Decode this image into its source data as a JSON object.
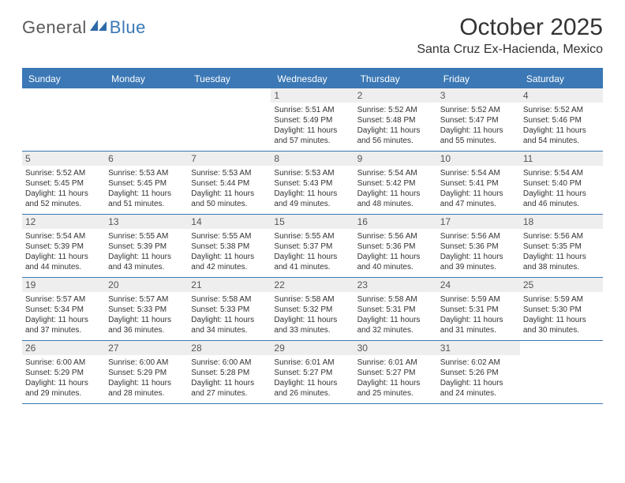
{
  "brand": {
    "part1": "General",
    "part2": "Blue"
  },
  "title": "October 2025",
  "location": "Santa Cruz Ex-Hacienda, Mexico",
  "colors": {
    "accent": "#3b78b5",
    "header_text": "#ffffff",
    "daynum_bg": "#eeeeee",
    "body_text": "#333333"
  },
  "weekdays": [
    "Sunday",
    "Monday",
    "Tuesday",
    "Wednesday",
    "Thursday",
    "Friday",
    "Saturday"
  ],
  "weeks": [
    [
      {
        "n": "",
        "sr": "",
        "ss": "",
        "dl1": "",
        "dl2": ""
      },
      {
        "n": "",
        "sr": "",
        "ss": "",
        "dl1": "",
        "dl2": ""
      },
      {
        "n": "",
        "sr": "",
        "ss": "",
        "dl1": "",
        "dl2": ""
      },
      {
        "n": "1",
        "sr": "Sunrise: 5:51 AM",
        "ss": "Sunset: 5:49 PM",
        "dl1": "Daylight: 11 hours",
        "dl2": "and 57 minutes."
      },
      {
        "n": "2",
        "sr": "Sunrise: 5:52 AM",
        "ss": "Sunset: 5:48 PM",
        "dl1": "Daylight: 11 hours",
        "dl2": "and 56 minutes."
      },
      {
        "n": "3",
        "sr": "Sunrise: 5:52 AM",
        "ss": "Sunset: 5:47 PM",
        "dl1": "Daylight: 11 hours",
        "dl2": "and 55 minutes."
      },
      {
        "n": "4",
        "sr": "Sunrise: 5:52 AM",
        "ss": "Sunset: 5:46 PM",
        "dl1": "Daylight: 11 hours",
        "dl2": "and 54 minutes."
      }
    ],
    [
      {
        "n": "5",
        "sr": "Sunrise: 5:52 AM",
        "ss": "Sunset: 5:45 PM",
        "dl1": "Daylight: 11 hours",
        "dl2": "and 52 minutes."
      },
      {
        "n": "6",
        "sr": "Sunrise: 5:53 AM",
        "ss": "Sunset: 5:45 PM",
        "dl1": "Daylight: 11 hours",
        "dl2": "and 51 minutes."
      },
      {
        "n": "7",
        "sr": "Sunrise: 5:53 AM",
        "ss": "Sunset: 5:44 PM",
        "dl1": "Daylight: 11 hours",
        "dl2": "and 50 minutes."
      },
      {
        "n": "8",
        "sr": "Sunrise: 5:53 AM",
        "ss": "Sunset: 5:43 PM",
        "dl1": "Daylight: 11 hours",
        "dl2": "and 49 minutes."
      },
      {
        "n": "9",
        "sr": "Sunrise: 5:54 AM",
        "ss": "Sunset: 5:42 PM",
        "dl1": "Daylight: 11 hours",
        "dl2": "and 48 minutes."
      },
      {
        "n": "10",
        "sr": "Sunrise: 5:54 AM",
        "ss": "Sunset: 5:41 PM",
        "dl1": "Daylight: 11 hours",
        "dl2": "and 47 minutes."
      },
      {
        "n": "11",
        "sr": "Sunrise: 5:54 AM",
        "ss": "Sunset: 5:40 PM",
        "dl1": "Daylight: 11 hours",
        "dl2": "and 46 minutes."
      }
    ],
    [
      {
        "n": "12",
        "sr": "Sunrise: 5:54 AM",
        "ss": "Sunset: 5:39 PM",
        "dl1": "Daylight: 11 hours",
        "dl2": "and 44 minutes."
      },
      {
        "n": "13",
        "sr": "Sunrise: 5:55 AM",
        "ss": "Sunset: 5:39 PM",
        "dl1": "Daylight: 11 hours",
        "dl2": "and 43 minutes."
      },
      {
        "n": "14",
        "sr": "Sunrise: 5:55 AM",
        "ss": "Sunset: 5:38 PM",
        "dl1": "Daylight: 11 hours",
        "dl2": "and 42 minutes."
      },
      {
        "n": "15",
        "sr": "Sunrise: 5:55 AM",
        "ss": "Sunset: 5:37 PM",
        "dl1": "Daylight: 11 hours",
        "dl2": "and 41 minutes."
      },
      {
        "n": "16",
        "sr": "Sunrise: 5:56 AM",
        "ss": "Sunset: 5:36 PM",
        "dl1": "Daylight: 11 hours",
        "dl2": "and 40 minutes."
      },
      {
        "n": "17",
        "sr": "Sunrise: 5:56 AM",
        "ss": "Sunset: 5:36 PM",
        "dl1": "Daylight: 11 hours",
        "dl2": "and 39 minutes."
      },
      {
        "n": "18",
        "sr": "Sunrise: 5:56 AM",
        "ss": "Sunset: 5:35 PM",
        "dl1": "Daylight: 11 hours",
        "dl2": "and 38 minutes."
      }
    ],
    [
      {
        "n": "19",
        "sr": "Sunrise: 5:57 AM",
        "ss": "Sunset: 5:34 PM",
        "dl1": "Daylight: 11 hours",
        "dl2": "and 37 minutes."
      },
      {
        "n": "20",
        "sr": "Sunrise: 5:57 AM",
        "ss": "Sunset: 5:33 PM",
        "dl1": "Daylight: 11 hours",
        "dl2": "and 36 minutes."
      },
      {
        "n": "21",
        "sr": "Sunrise: 5:58 AM",
        "ss": "Sunset: 5:33 PM",
        "dl1": "Daylight: 11 hours",
        "dl2": "and 34 minutes."
      },
      {
        "n": "22",
        "sr": "Sunrise: 5:58 AM",
        "ss": "Sunset: 5:32 PM",
        "dl1": "Daylight: 11 hours",
        "dl2": "and 33 minutes."
      },
      {
        "n": "23",
        "sr": "Sunrise: 5:58 AM",
        "ss": "Sunset: 5:31 PM",
        "dl1": "Daylight: 11 hours",
        "dl2": "and 32 minutes."
      },
      {
        "n": "24",
        "sr": "Sunrise: 5:59 AM",
        "ss": "Sunset: 5:31 PM",
        "dl1": "Daylight: 11 hours",
        "dl2": "and 31 minutes."
      },
      {
        "n": "25",
        "sr": "Sunrise: 5:59 AM",
        "ss": "Sunset: 5:30 PM",
        "dl1": "Daylight: 11 hours",
        "dl2": "and 30 minutes."
      }
    ],
    [
      {
        "n": "26",
        "sr": "Sunrise: 6:00 AM",
        "ss": "Sunset: 5:29 PM",
        "dl1": "Daylight: 11 hours",
        "dl2": "and 29 minutes."
      },
      {
        "n": "27",
        "sr": "Sunrise: 6:00 AM",
        "ss": "Sunset: 5:29 PM",
        "dl1": "Daylight: 11 hours",
        "dl2": "and 28 minutes."
      },
      {
        "n": "28",
        "sr": "Sunrise: 6:00 AM",
        "ss": "Sunset: 5:28 PM",
        "dl1": "Daylight: 11 hours",
        "dl2": "and 27 minutes."
      },
      {
        "n": "29",
        "sr": "Sunrise: 6:01 AM",
        "ss": "Sunset: 5:27 PM",
        "dl1": "Daylight: 11 hours",
        "dl2": "and 26 minutes."
      },
      {
        "n": "30",
        "sr": "Sunrise: 6:01 AM",
        "ss": "Sunset: 5:27 PM",
        "dl1": "Daylight: 11 hours",
        "dl2": "and 25 minutes."
      },
      {
        "n": "31",
        "sr": "Sunrise: 6:02 AM",
        "ss": "Sunset: 5:26 PM",
        "dl1": "Daylight: 11 hours",
        "dl2": "and 24 minutes."
      },
      {
        "n": "",
        "sr": "",
        "ss": "",
        "dl1": "",
        "dl2": ""
      }
    ]
  ]
}
